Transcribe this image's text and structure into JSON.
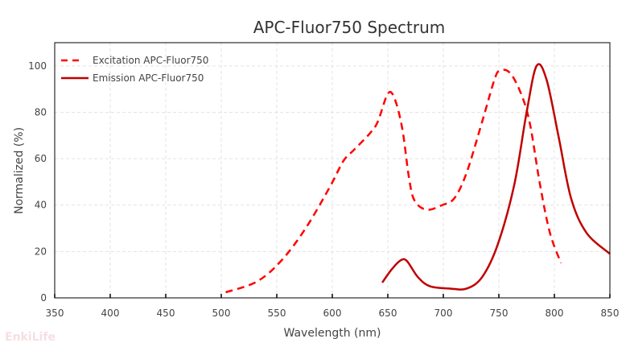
{
  "chart_data": {
    "type": "line",
    "title": "APC-Fluor750  Spectrum",
    "xlabel": "Wavelength (nm)",
    "ylabel": "Normalized (%)",
    "xlim": [
      350,
      850
    ],
    "ylim": [
      0,
      110
    ],
    "xticks": [
      350,
      400,
      450,
      500,
      550,
      600,
      650,
      700,
      750,
      800,
      850
    ],
    "yticks": [
      0,
      20,
      40,
      60,
      80,
      100
    ],
    "grid": true,
    "legend_position": "top-left",
    "series": [
      {
        "name": "Excitation APC-Fluor750",
        "style": "dashed",
        "color": "#ff0000",
        "x": [
          504,
          532,
          554,
          576,
          598,
          610,
          620,
          634,
          641,
          650,
          656,
          663,
          669,
          674,
          685,
          699,
          710,
          721,
          735,
          746,
          751,
          760,
          770,
          778,
          787,
          796,
          806
        ],
        "y": [
          2.4,
          7,
          16,
          30,
          48,
          59,
          64,
          71,
          76,
          88,
          86,
          73,
          52,
          42,
          38,
          40,
          43,
          54,
          76,
          94,
          98,
          97,
          88,
          75,
          49,
          28,
          15
        ]
      },
      {
        "name": "Emission APC-Fluor750",
        "style": "solid",
        "color": "#c00000",
        "x": [
          645,
          653,
          661,
          667,
          677,
          688,
          706,
          721,
          735,
          749,
          764,
          775,
          784,
          793,
          804,
          815,
          829,
          850
        ],
        "y": [
          6.6,
          12,
          16,
          16,
          9,
          5,
          4,
          4,
          9,
          23,
          49,
          80,
          100,
          94,
          69,
          43,
          28,
          19
        ]
      }
    ],
    "watermark": "EnkiLife"
  }
}
